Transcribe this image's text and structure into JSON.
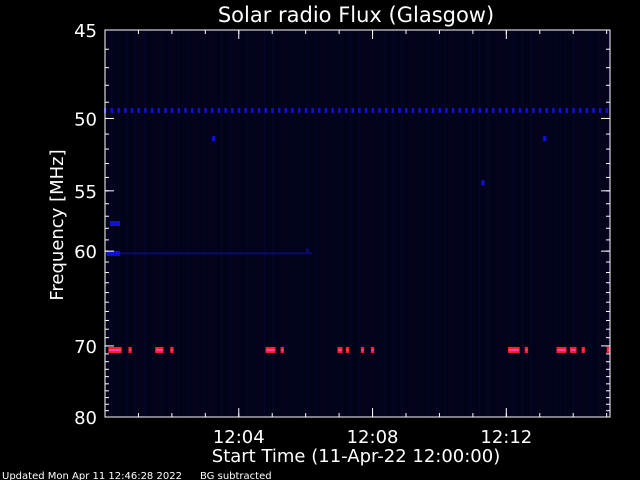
{
  "chart_data": {
    "type": "heatmap",
    "title": "Solar radio Flux (Glasgow)",
    "xlabel": "Start Time (11-Apr-22 12:00:00)",
    "ylabel": "Frequency [MHz]",
    "x_unit": "minutes after 12:00:00",
    "xlim": [
      0,
      15.1
    ],
    "ylim": [
      45,
      80
    ],
    "y_scale": "reciprocal",
    "x_ticks": [
      {
        "value": 4,
        "label": "12:04"
      },
      {
        "value": 8,
        "label": "12:08"
      },
      {
        "value": 12,
        "label": "12:12"
      }
    ],
    "y_ticks": [
      {
        "value": 45,
        "label": "45"
      },
      {
        "value": 50,
        "label": "50"
      },
      {
        "value": 55,
        "label": "55"
      },
      {
        "value": 60,
        "label": "60"
      },
      {
        "value": 70,
        "label": "70"
      },
      {
        "value": 80,
        "label": "80"
      }
    ],
    "grid": false,
    "background_color": "#000000",
    "plot_background_color": "#02021a",
    "colors": {
      "low": "#0a0a6e",
      "mid": "#1010dd",
      "high": "#ff2020",
      "peak": "#ff50ff"
    },
    "features": [
      {
        "name": "Dotted line",
        "frequency_mhz": 49.5,
        "x_start": 0,
        "x_end": 15.1,
        "spacing_min": 0.2,
        "intensity": "mid"
      },
      {
        "name": "Bright row",
        "frequency_mhz": 70.5,
        "segments": [
          {
            "x_start": 0.1,
            "x_end": 0.5,
            "intensity": "high"
          },
          {
            "x_start": 0.7,
            "x_end": 0.8,
            "intensity": "high"
          },
          {
            "x_start": 1.5,
            "x_end": 1.75,
            "intensity": "high"
          },
          {
            "x_start": 1.95,
            "x_end": 2.05,
            "intensity": "high"
          },
          {
            "x_start": 4.8,
            "x_end": 5.1,
            "intensity": "high"
          },
          {
            "x_start": 5.25,
            "x_end": 5.35,
            "intensity": "high"
          },
          {
            "x_start": 6.95,
            "x_end": 7.1,
            "intensity": "high"
          },
          {
            "x_start": 7.2,
            "x_end": 7.3,
            "intensity": "high"
          },
          {
            "x_start": 7.65,
            "x_end": 7.75,
            "intensity": "high"
          },
          {
            "x_start": 7.95,
            "x_end": 8.05,
            "intensity": "high"
          },
          {
            "x_start": 12.05,
            "x_end": 12.4,
            "intensity": "high"
          },
          {
            "x_start": 12.55,
            "x_end": 12.65,
            "intensity": "high"
          },
          {
            "x_start": 13.5,
            "x_end": 13.8,
            "intensity": "high"
          },
          {
            "x_start": 13.9,
            "x_end": 14.1,
            "intensity": "high"
          },
          {
            "x_start": 14.25,
            "x_end": 14.35,
            "intensity": "high"
          },
          {
            "x_start": 15.0,
            "x_end": 15.1,
            "intensity": "high"
          }
        ]
      },
      {
        "name": "Faint row",
        "frequency_mhz": 60.2,
        "x_start": 0,
        "x_end": 6.2,
        "intensity": "low"
      },
      {
        "name": "Spot",
        "frequency_mhz": 60.2,
        "x_start": 0.05,
        "x_end": 0.45,
        "intensity": "mid"
      },
      {
        "name": "Spot",
        "frequency_mhz": 57.6,
        "x_start": 0.15,
        "x_end": 0.45,
        "intensity": "mid"
      },
      {
        "name": "Spot",
        "frequency_mhz": 51.3,
        "x_start": 3.2,
        "x_end": 3.3,
        "intensity": "mid"
      },
      {
        "name": "Spot",
        "frequency_mhz": 51.3,
        "x_start": 13.1,
        "x_end": 13.2,
        "intensity": "mid"
      },
      {
        "name": "Spot",
        "frequency_mhz": 54.4,
        "x_start": 11.25,
        "x_end": 11.35,
        "intensity": "mid"
      },
      {
        "name": "Spot",
        "frequency_mhz": 60.0,
        "x_start": 6.0,
        "x_end": 6.1,
        "intensity": "low"
      }
    ]
  },
  "footer": {
    "updated": "Updated Mon Apr 11 12:46:28 2022",
    "note": "BG subtracted"
  }
}
